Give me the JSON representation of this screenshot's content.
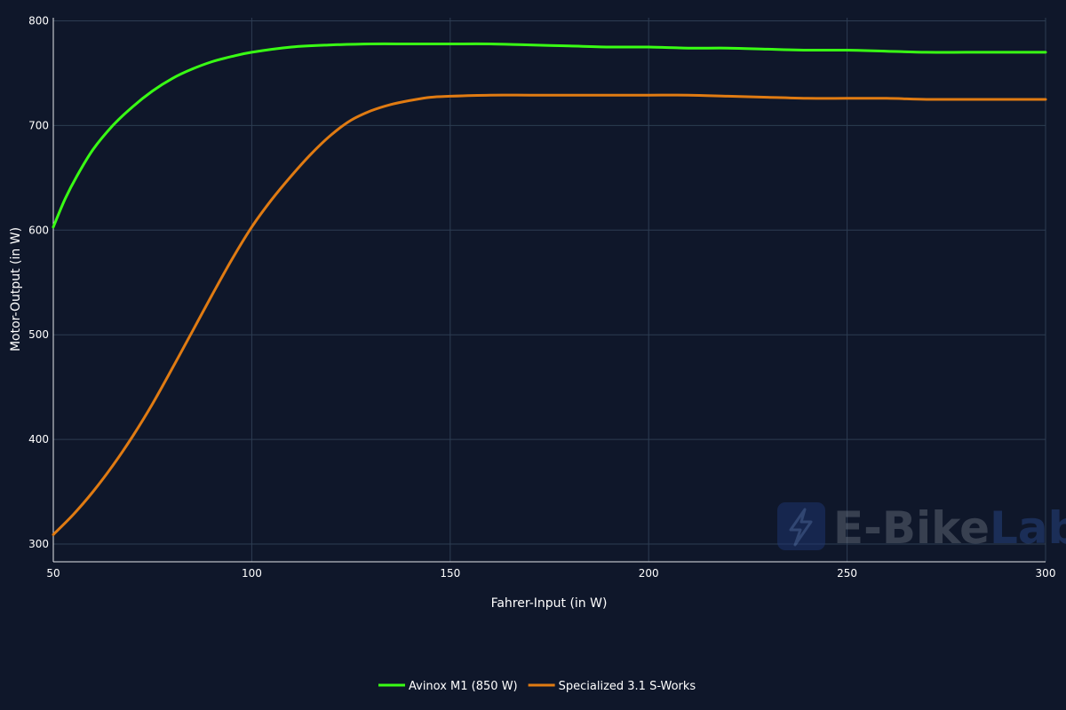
{
  "chart_data": {
    "type": "line",
    "title": "",
    "xlabel": "Fahrer-Input (in W)",
    "ylabel": "Motor-Output (in W)",
    "xlim": [
      50,
      300
    ],
    "ylim": [
      283,
      803
    ],
    "xticks": [
      50,
      100,
      150,
      200,
      250,
      300
    ],
    "yticks": [
      300,
      400,
      500,
      600,
      700,
      800
    ],
    "grid": true,
    "legend_position": "bottom-center",
    "series": [
      {
        "name": "Avinox M1 (850 W)",
        "color": "#39ff14",
        "x": [
          50,
          53,
          56,
          60,
          65,
          70,
          75,
          80,
          85,
          90,
          95,
          100,
          110,
          120,
          130,
          140,
          150,
          160,
          170,
          180,
          190,
          200,
          210,
          220,
          230,
          240,
          250,
          260,
          270,
          280,
          290,
          300
        ],
        "y": [
          603,
          630,
          652,
          677,
          700,
          718,
          733,
          745,
          754,
          761,
          766,
          770,
          775,
          777,
          778,
          778,
          778,
          778,
          777,
          776,
          775,
          775,
          774,
          774,
          773,
          772,
          772,
          771,
          770,
          770,
          770,
          770
        ]
      },
      {
        "name": "Specialized 3.1 S-Works",
        "color": "#e07b12",
        "x": [
          50,
          55,
          60,
          65,
          70,
          75,
          80,
          85,
          90,
          95,
          100,
          105,
          110,
          115,
          120,
          125,
          130,
          135,
          140,
          145,
          150,
          160,
          170,
          180,
          190,
          200,
          210,
          220,
          230,
          240,
          250,
          260,
          270,
          280,
          290,
          300
        ],
        "y": [
          309,
          328,
          350,
          375,
          403,
          434,
          468,
          503,
          538,
          572,
          603,
          629,
          652,
          673,
          691,
          705,
          714,
          720,
          724,
          727,
          728,
          729,
          729,
          729,
          729,
          729,
          729,
          728,
          727,
          726,
          726,
          726,
          725,
          725,
          725,
          725
        ]
      }
    ]
  },
  "watermark": {
    "brand_part1": "E-Bike",
    "brand_part2": "Lab",
    "icon": "lightning-bolt-icon"
  }
}
